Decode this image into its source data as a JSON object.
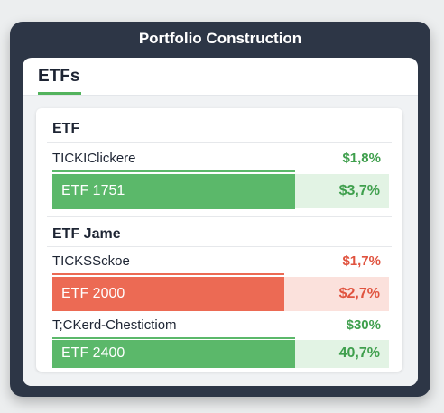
{
  "window": {
    "title": "Portfolio Construction"
  },
  "tabs": [
    {
      "label": "ETFs",
      "active": true
    }
  ],
  "colors": {
    "green": "#5bb86a",
    "green_light": "#e2f3e4",
    "red": "#ec6a54",
    "red_light": "#fbe1dc",
    "green_text": "#3f9f4d",
    "red_text": "#e0533f"
  },
  "sections": [
    {
      "title": "ETF",
      "ticker": {
        "name": "TICKIClickere",
        "pct": "$1,8%"
      },
      "etf": {
        "name": "ETF 1751",
        "pct": "$3,7%",
        "fill_fraction": 0.72
      }
    },
    {
      "title": "ETF Jame",
      "ticker": {
        "name": "TICKSSckoe",
        "pct": "$1,7%"
      },
      "etf": {
        "name": "ETF 2000",
        "pct": "$2,7%",
        "fill_fraction": 0.69
      },
      "ticker2": {
        "name": "T;CKerd-Chestictiom",
        "pct": "$30%"
      },
      "etf2": {
        "name": "ETF 2400",
        "pct": "40,7%",
        "fill_fraction": 0.72
      }
    }
  ]
}
